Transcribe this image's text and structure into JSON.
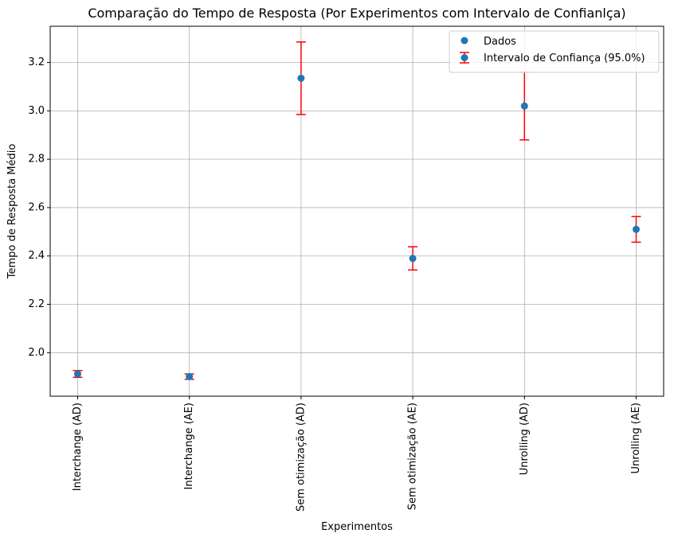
{
  "chart_data": {
    "type": "scatter",
    "title": "Comparação do Tempo de Resposta (Por Experimentos com Intervalo de Confianlça)",
    "xlabel": "Experimentos",
    "ylabel": "Tempo de Resposta Médio",
    "categories": [
      "Interchange (AD)",
      "Interchange (AE)",
      "Sem otimização (AD)",
      "Sem otimização (AE)",
      "Unrolling (AD)",
      "Unrolling (AE)"
    ],
    "series": [
      {
        "name": "Dados",
        "values": [
          1.912,
          1.901,
          3.135,
          2.39,
          3.02,
          2.51
        ],
        "ci_lower": [
          1.898,
          1.89,
          2.985,
          2.342,
          2.88,
          2.457
        ],
        "ci_upper": [
          1.926,
          1.912,
          3.285,
          2.438,
          3.16,
          2.563
        ]
      }
    ],
    "errorbar_label": "Intervalo de Confiança (95.0%)",
    "ylim": [
      1.82,
      3.35
    ],
    "yticks": [
      2.0,
      2.2,
      2.4,
      2.6,
      2.8,
      3.0,
      3.2
    ],
    "ytick_labels": [
      "2.0",
      "2.2",
      "2.4",
      "2.6",
      "2.8",
      "3.0",
      "3.2"
    ],
    "grid": true,
    "legend_position": "top-right",
    "colors": {
      "marker": "#1f77b4",
      "errorbar": "#ff0000",
      "grid": "#b0b0b0"
    }
  }
}
